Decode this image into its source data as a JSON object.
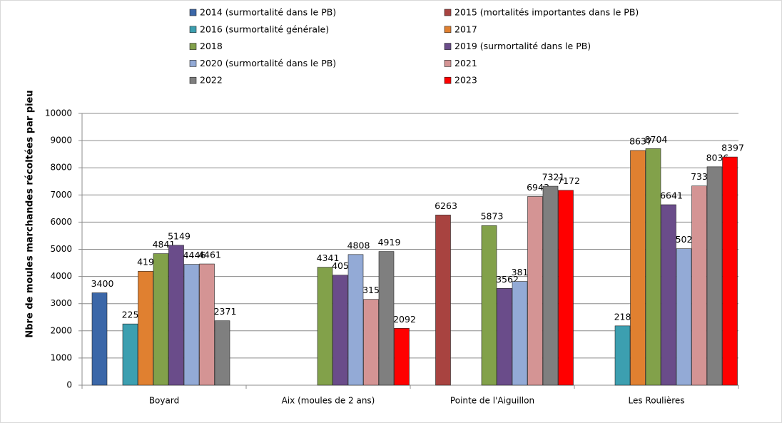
{
  "chart_data": {
    "type": "bar",
    "y_label": "Nbre de moules marchandes récoltées par pieu",
    "categories": [
      "Boyard",
      "Aix (moules de 2 ans)",
      "Pointe de l'Aiguillon",
      "Les Roulières"
    ],
    "series": [
      {
        "name": "2014 (surmortalité dans le PB)",
        "color": "#3b67a8",
        "values": [
          3400,
          null,
          null,
          null
        ]
      },
      {
        "name": "2015 (mortalités importantes dans le PB)",
        "color": "#a84340",
        "values": [
          null,
          null,
          6263,
          null
        ]
      },
      {
        "name": "2016 (surmortalité générale)",
        "color": "#3c9fb0",
        "values": [
          2254,
          null,
          null,
          2183
        ]
      },
      {
        "name": "2017",
        "color": "#e08030",
        "values": [
          4193,
          null,
          null,
          8637
        ]
      },
      {
        "name": "2018",
        "color": "#82a14a",
        "values": [
          4841,
          4341,
          5873,
          8704
        ]
      },
      {
        "name": "2019 (surmortalité dans le PB)",
        "color": "#6a4c8a",
        "values": [
          5149,
          4051,
          3562,
          6641
        ]
      },
      {
        "name": "2020 (surmortalité dans le PB)",
        "color": "#93aad6",
        "values": [
          4446,
          4808,
          3817,
          5022
        ]
      },
      {
        "name": "2021",
        "color": "#d49494",
        "values": [
          4461,
          3157,
          6943,
          7332
        ]
      },
      {
        "name": "2022",
        "color": "#7f7f7f",
        "values": [
          2371,
          4919,
          7321,
          8036
        ]
      },
      {
        "name": "2023",
        "color": "#ff0000",
        "values": [
          null,
          2092,
          7172,
          8397
        ]
      }
    ],
    "ylim": [
      0,
      10000
    ],
    "yticks": [
      0,
      1000,
      2000,
      3000,
      4000,
      5000,
      6000,
      7000,
      8000,
      9000,
      10000
    ],
    "grid": true
  }
}
